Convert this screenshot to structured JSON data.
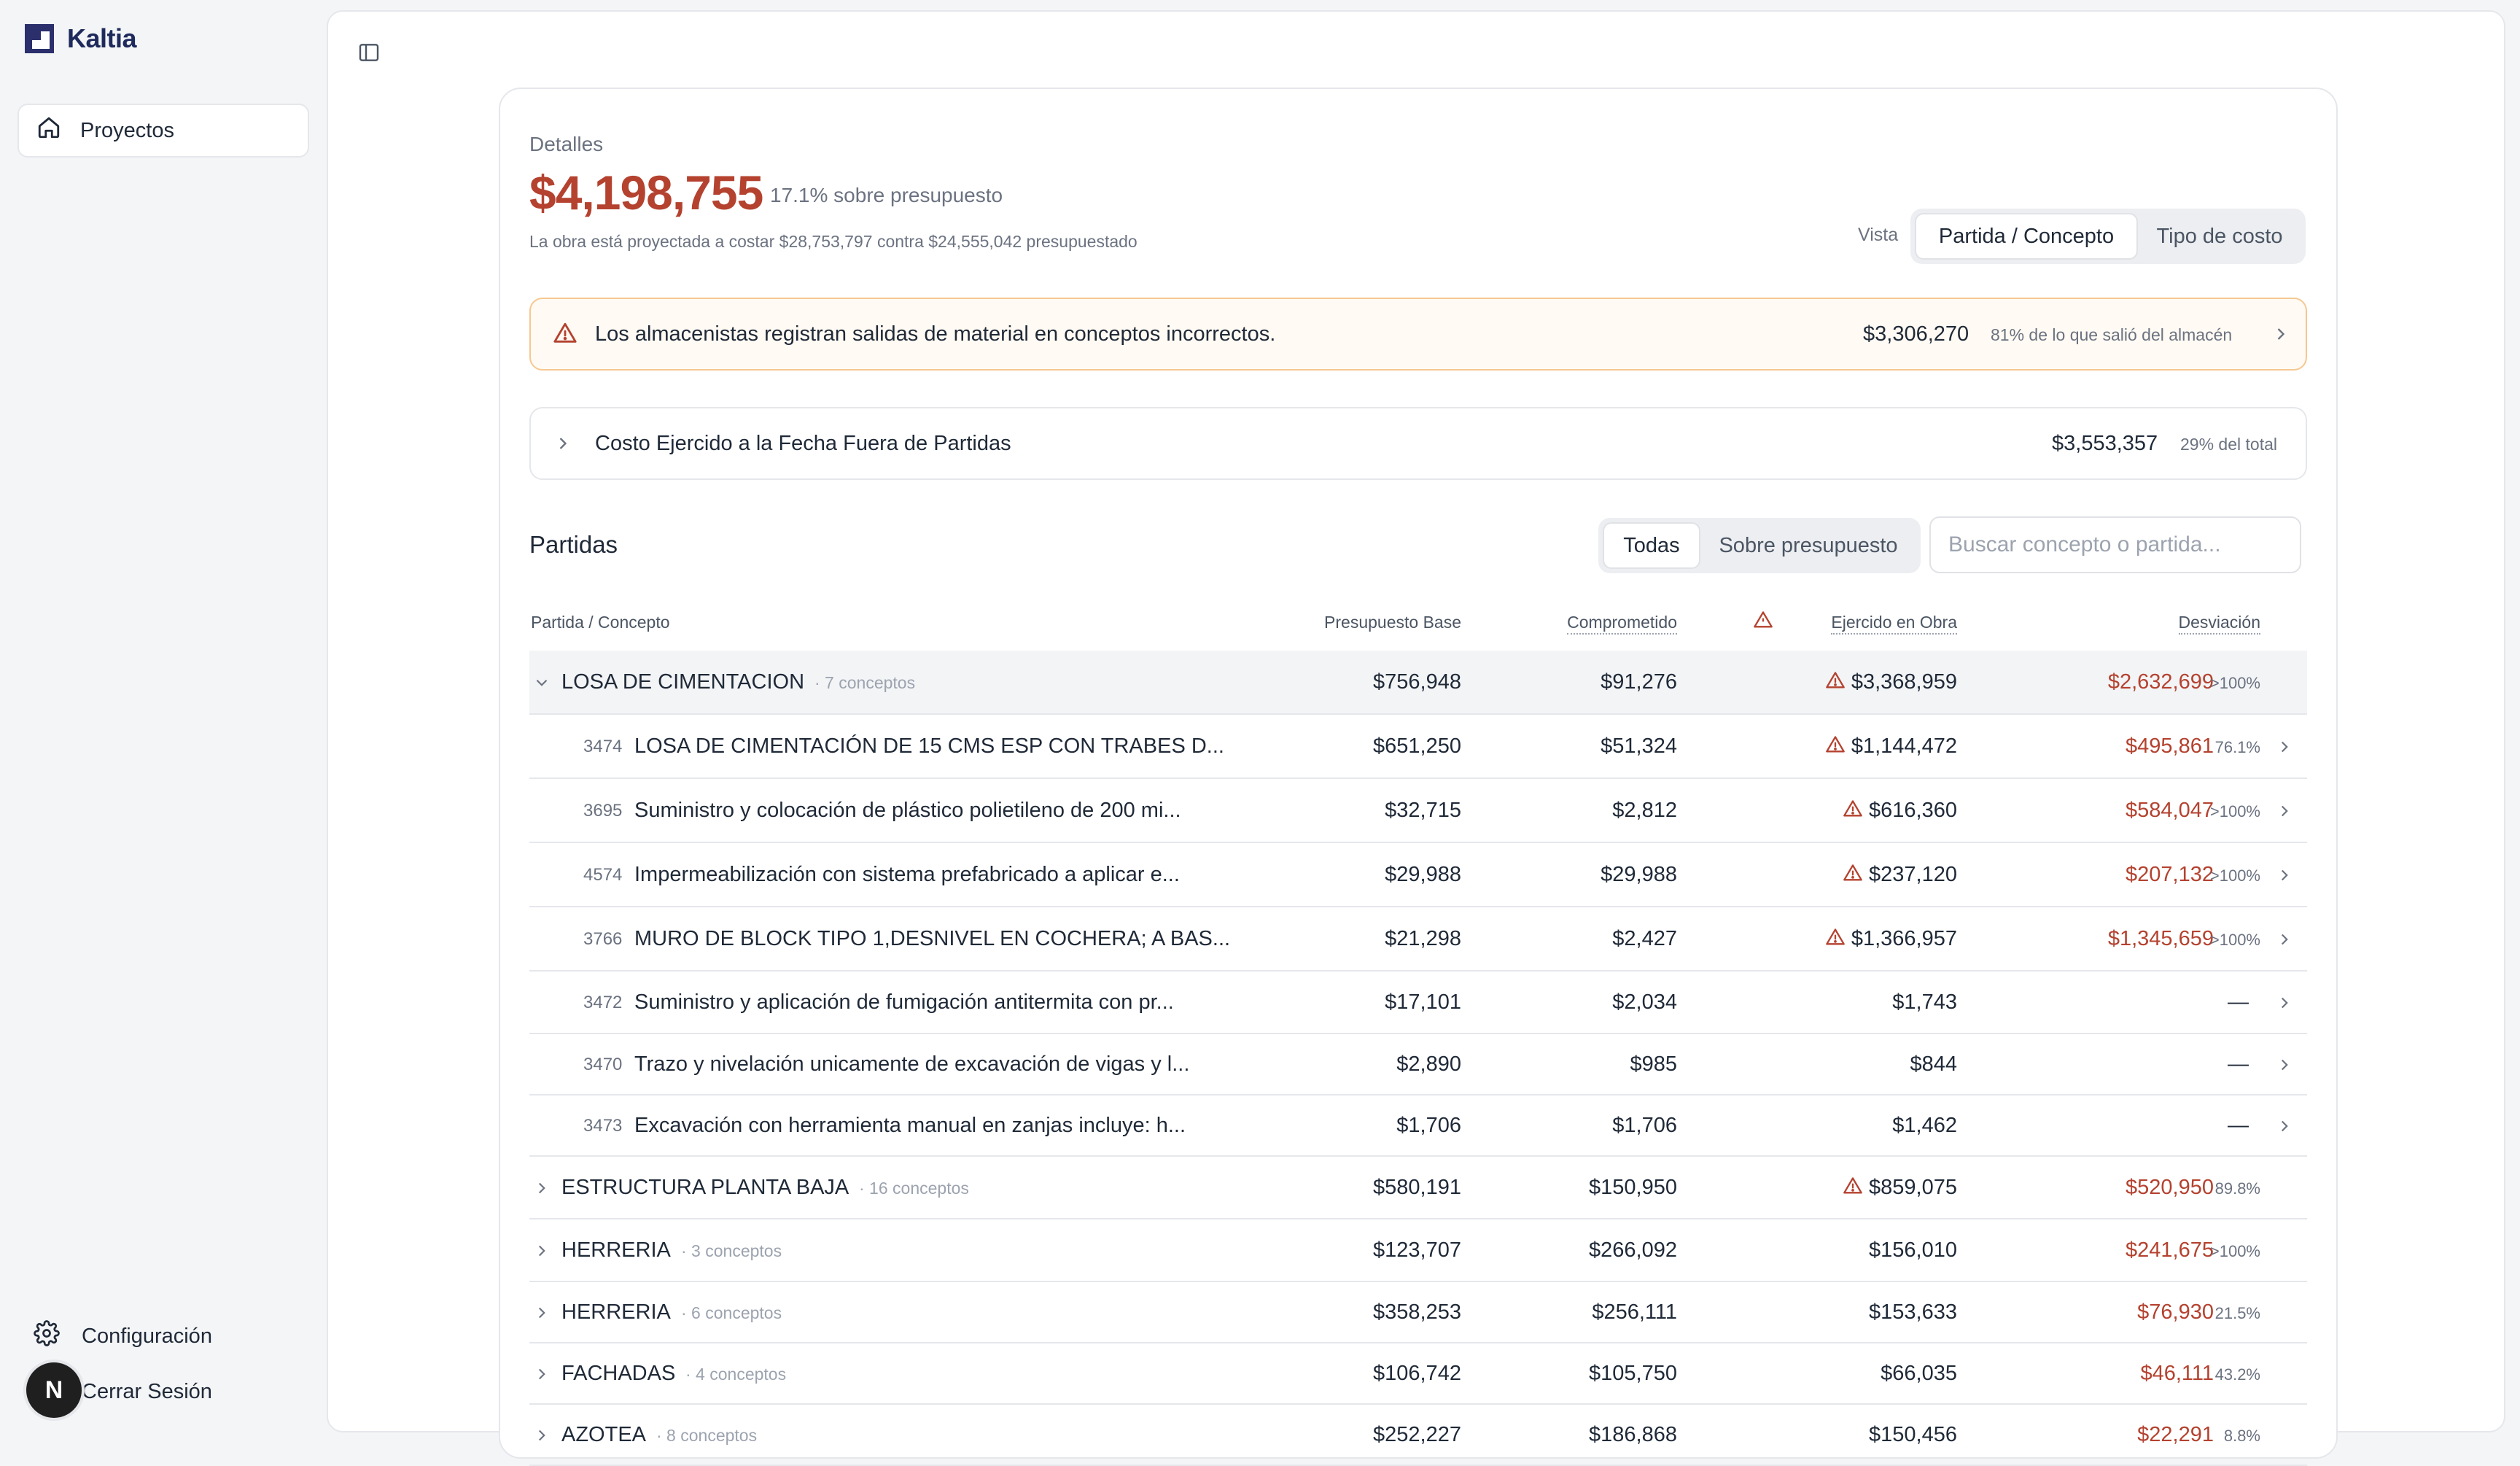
{
  "brand": {
    "name": "Kaltia"
  },
  "sidebar": {
    "nav": [
      {
        "label": "Proyectos",
        "icon": "home-icon"
      }
    ],
    "settings_label": "Configuración",
    "logout_label": "Cerrar Sesión",
    "avatar_initial": "N"
  },
  "summary": {
    "details_label": "Detalles",
    "projected_total": "$4,198,755",
    "over_budget_text": "17.1% sobre presupuesto",
    "projection_text": "La obra está proyectada a costar $28,753,797 contra $24,555,042 presupuestado",
    "vista_label": "Vista",
    "view_options": [
      "Partida / Concepto",
      "Tipo de costo"
    ],
    "view_selected": "Partida / Concepto"
  },
  "alert": {
    "icon": "warning-triangle-icon",
    "message": "Los almacenistas registran salidas de material en conceptos incorrectos.",
    "amount": "$3,306,270",
    "note": "81% de lo que salió del almacén"
  },
  "outside_cost": {
    "label": "Costo Ejercido a la Fecha Fuera de Partidas",
    "amount": "$3,553,357",
    "note": "29% del total"
  },
  "partidas": {
    "title": "Partidas",
    "filters": [
      "Todas",
      "Sobre presupuesto"
    ],
    "filter_selected": "Todas",
    "search_placeholder": "Buscar concepto o partida...",
    "columns": {
      "concept": "Partida / Concepto",
      "base": "Presupuesto Base",
      "committed": "Comprometido",
      "executed": "Ejercido en Obra",
      "deviation": "Desviación"
    },
    "rows": [
      {
        "type": "group",
        "expanded": true,
        "name": "LOSA DE CIMENTACION",
        "count": "· 7 conceptos",
        "base": "$756,948",
        "committed": "$91,276",
        "executed": "$3,368,959",
        "warn": true,
        "deviation": "$2,632,699",
        "pct": ">100%"
      },
      {
        "type": "item",
        "code": "3474",
        "name": "LOSA DE CIMENTACIÓN DE 15 CMS ESP CON TRABES D...",
        "base": "$651,250",
        "committed": "$51,324",
        "executed": "$1,144,472",
        "warn": true,
        "deviation": "$495,861",
        "pct": "76.1%"
      },
      {
        "type": "item",
        "code": "3695",
        "name": "Suministro y colocación de plástico polietileno de 200 mi...",
        "base": "$32,715",
        "committed": "$2,812",
        "executed": "$616,360",
        "warn": true,
        "deviation": "$584,047",
        "pct": ">100%"
      },
      {
        "type": "item",
        "code": "4574",
        "name": "Impermeabilización con sistema prefabricado a aplicar e...",
        "base": "$29,988",
        "committed": "$29,988",
        "executed": "$237,120",
        "warn": true,
        "deviation": "$207,132",
        "pct": ">100%"
      },
      {
        "type": "item",
        "code": "3766",
        "name": "MURO DE BLOCK TIPO 1,DESNIVEL EN COCHERA; A BAS...",
        "base": "$21,298",
        "committed": "$2,427",
        "executed": "$1,366,957",
        "warn": true,
        "deviation": "$1,345,659",
        "pct": ">100%"
      },
      {
        "type": "item",
        "code": "3472",
        "name": "Suministro y aplicación de fumigación antitermita con pr...",
        "base": "$17,101",
        "committed": "$2,034",
        "executed": "$1,743",
        "warn": false,
        "deviation": "—",
        "pct": ""
      },
      {
        "type": "item",
        "code": "3470",
        "name": "Trazo y nivelación unicamente de excavación de vigas y l...",
        "base": "$2,890",
        "committed": "$985",
        "executed": "$844",
        "warn": false,
        "deviation": "—",
        "pct": ""
      },
      {
        "type": "item",
        "code": "3473",
        "name": "Excavación con herramienta manual en zanjas incluye: h...",
        "base": "$1,706",
        "committed": "$1,706",
        "executed": "$1,462",
        "warn": false,
        "deviation": "—",
        "pct": ""
      },
      {
        "type": "group",
        "expanded": false,
        "name": "ESTRUCTURA PLANTA BAJA",
        "count": "· 16 conceptos",
        "base": "$580,191",
        "committed": "$150,950",
        "executed": "$859,075",
        "warn": true,
        "deviation": "$520,950",
        "pct": "89.8%"
      },
      {
        "type": "group",
        "expanded": false,
        "name": "HERRERIA",
        "count": "· 3 conceptos",
        "base": "$123,707",
        "committed": "$266,092",
        "executed": "$156,010",
        "warn": false,
        "deviation": "$241,675",
        "pct": ">100%"
      },
      {
        "type": "group",
        "expanded": false,
        "name": "HERRERIA",
        "count": "· 6 conceptos",
        "base": "$358,253",
        "committed": "$256,111",
        "executed": "$153,633",
        "warn": false,
        "deviation": "$76,930",
        "pct": "21.5%"
      },
      {
        "type": "group",
        "expanded": false,
        "name": "FACHADAS",
        "count": "· 4 conceptos",
        "base": "$106,742",
        "committed": "$105,750",
        "executed": "$66,035",
        "warn": false,
        "deviation": "$46,111",
        "pct": "43.2%"
      },
      {
        "type": "group",
        "expanded": false,
        "name": "AZOTEA",
        "count": "· 8 conceptos",
        "base": "$252,227",
        "committed": "$186,868",
        "executed": "$150,456",
        "warn": false,
        "deviation": "$22,291",
        "pct": "8.8%"
      }
    ]
  },
  "colors": {
    "accent": "#2b2f6b",
    "danger": "#b4422f",
    "warning_border": "#f6c891"
  }
}
